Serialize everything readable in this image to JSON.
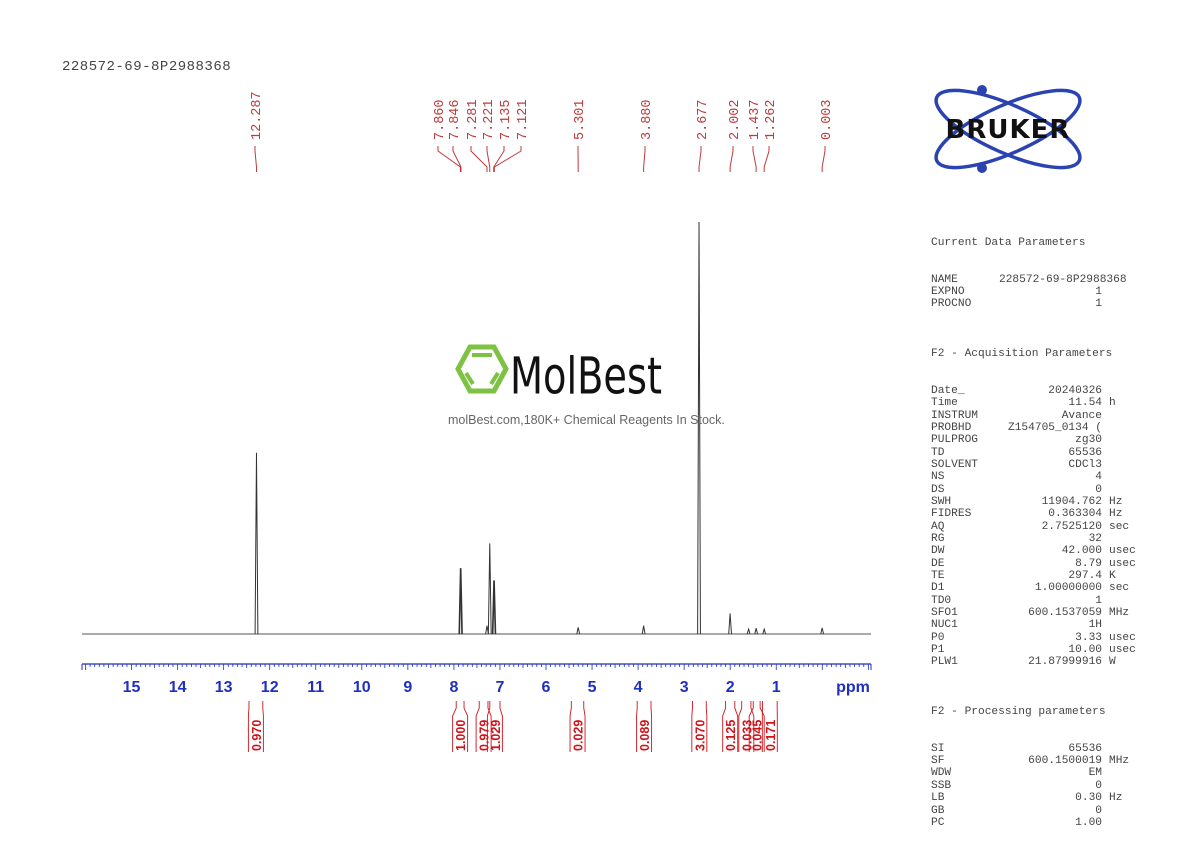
{
  "header": {
    "title": "228572-69-8P2988368"
  },
  "logos": {
    "bruker": "BRUKER",
    "molbest": "MolBest",
    "molbest_tagline": "molBest.com,180K+ Chemical Reagents In Stock."
  },
  "colors": {
    "peak_labels": "#c0393b",
    "axis": "#1f2fbf",
    "integrals": "#d0131a",
    "spectrum": "#333333",
    "bruker_blue": "#2b43b0",
    "molbest_green": "#7dc242"
  },
  "params": {
    "current": {
      "heading": "Current Data Parameters",
      "rows": [
        {
          "k": "NAME",
          "v": "228572-69-8P2988368",
          "u": ""
        },
        {
          "k": "EXPNO",
          "v": "1",
          "u": ""
        },
        {
          "k": "PROCNO",
          "v": "1",
          "u": ""
        }
      ]
    },
    "acq": {
      "heading": "F2 - Acquisition Parameters",
      "rows": [
        {
          "k": "Date_",
          "v": "20240326",
          "u": ""
        },
        {
          "k": "Time",
          "v": "11.54",
          "u": "h"
        },
        {
          "k": "INSTRUM",
          "v": "Avance",
          "u": ""
        },
        {
          "k": "PROBHD",
          "v": "Z154705_0134 (",
          "u": ""
        },
        {
          "k": "PULPROG",
          "v": "zg30",
          "u": ""
        },
        {
          "k": "TD",
          "v": "65536",
          "u": ""
        },
        {
          "k": "SOLVENT",
          "v": "CDCl3",
          "u": ""
        },
        {
          "k": "NS",
          "v": "4",
          "u": ""
        },
        {
          "k": "DS",
          "v": "0",
          "u": ""
        },
        {
          "k": "SWH",
          "v": "11904.762",
          "u": "Hz"
        },
        {
          "k": "FIDRES",
          "v": "0.363304",
          "u": "Hz"
        },
        {
          "k": "AQ",
          "v": "2.7525120",
          "u": "sec"
        },
        {
          "k": "RG",
          "v": "32",
          "u": ""
        },
        {
          "k": "DW",
          "v": "42.000",
          "u": "usec"
        },
        {
          "k": "DE",
          "v": "8.79",
          "u": "usec"
        },
        {
          "k": "TE",
          "v": "297.4",
          "u": "K"
        },
        {
          "k": "D1",
          "v": "1.00000000",
          "u": "sec"
        },
        {
          "k": "TD0",
          "v": "1",
          "u": ""
        },
        {
          "k": "SFO1",
          "v": "600.1537059",
          "u": "MHz"
        },
        {
          "k": "NUC1",
          "v": "1H",
          "u": ""
        },
        {
          "k": "P0",
          "v": "3.33",
          "u": "usec"
        },
        {
          "k": "P1",
          "v": "10.00",
          "u": "usec"
        },
        {
          "k": "PLW1",
          "v": "21.87999916",
          "u": "W"
        }
      ]
    },
    "proc": {
      "heading": "F2 - Processing parameters",
      "rows": [
        {
          "k": "SI",
          "v": "65536",
          "u": ""
        },
        {
          "k": "SF",
          "v": "600.1500019",
          "u": "MHz"
        },
        {
          "k": "WDW",
          "v": "EM",
          "u": ""
        },
        {
          "k": "SSB",
          "v": "0",
          "u": ""
        },
        {
          "k": "LB",
          "v": "0.30",
          "u": "Hz"
        },
        {
          "k": "GB",
          "v": "0",
          "u": ""
        },
        {
          "k": "PC",
          "v": "1.00",
          "u": ""
        }
      ]
    }
  },
  "chart_data": {
    "type": "line",
    "title": "228572-69-8P2988368",
    "xlabel": "ppm",
    "ylabel": "",
    "xlim": [
      16.0,
      -1.0
    ],
    "x_direction": "reversed",
    "x_ticks": [
      15,
      14,
      13,
      12,
      11,
      10,
      9,
      8,
      7,
      6,
      5,
      4,
      3,
      2,
      1
    ],
    "grid": false,
    "peak_labels": [
      "12.287",
      "7.860",
      "7.846",
      "7.281",
      "7.221",
      "7.135",
      "7.121",
      "5.301",
      "3.880",
      "2.677",
      "2.002",
      "1.437",
      "1.262",
      "0.003"
    ],
    "peaks": [
      {
        "ppm": 12.287,
        "rel_height": 0.44
      },
      {
        "ppm": 7.86,
        "rel_height": 0.16
      },
      {
        "ppm": 7.846,
        "rel_height": 0.16
      },
      {
        "ppm": 7.281,
        "rel_height": 0.02
      },
      {
        "ppm": 7.221,
        "rel_height": 0.22
      },
      {
        "ppm": 7.135,
        "rel_height": 0.13
      },
      {
        "ppm": 7.121,
        "rel_height": 0.13
      },
      {
        "ppm": 5.301,
        "rel_height": 0.016
      },
      {
        "ppm": 3.88,
        "rel_height": 0.02
      },
      {
        "ppm": 2.677,
        "rel_height": 1.0
      },
      {
        "ppm": 2.002,
        "rel_height": 0.05
      },
      {
        "ppm": 1.6,
        "rel_height": 0.012
      },
      {
        "ppm": 1.437,
        "rel_height": 0.014
      },
      {
        "ppm": 1.262,
        "rel_height": 0.012
      },
      {
        "ppm": 0.003,
        "rel_height": 0.015
      }
    ],
    "integrals": [
      {
        "from": 12.45,
        "to": 12.15,
        "value": "0.970"
      },
      {
        "from": 7.95,
        "to": 7.78,
        "value": "1.000"
      },
      {
        "from": 7.45,
        "to": 7.26,
        "value": "0.979"
      },
      {
        "from": 7.22,
        "to": 7.0,
        "value": "1.029"
      },
      {
        "from": 5.45,
        "to": 5.18,
        "value": "0.029"
      },
      {
        "from": 4.02,
        "to": 3.72,
        "value": "0.089"
      },
      {
        "from": 2.82,
        "to": 2.52,
        "value": "3.070"
      },
      {
        "from": 2.1,
        "to": 1.9,
        "value": "0.125"
      },
      {
        "from": 1.75,
        "to": 1.55,
        "value": "0.033"
      },
      {
        "from": 1.5,
        "to": 1.35,
        "value": "0.045"
      },
      {
        "from": 1.3,
        "to": 0.98,
        "value": "0.171"
      }
    ]
  }
}
